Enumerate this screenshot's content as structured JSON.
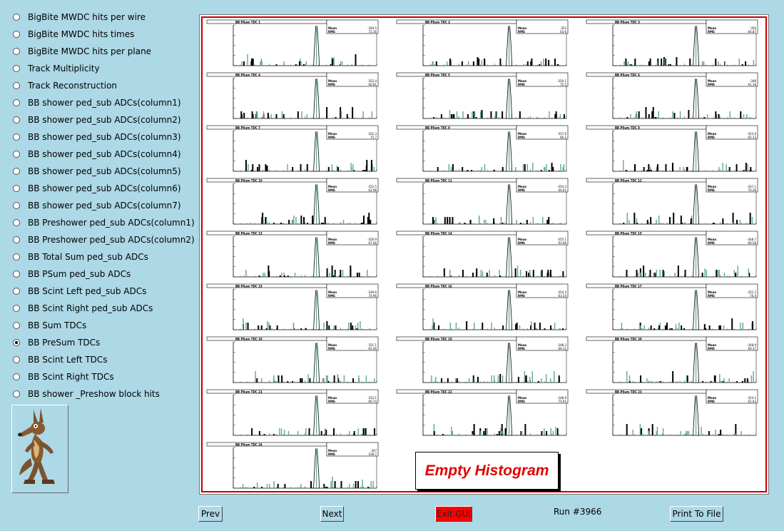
{
  "radio_options": [
    {
      "label": "BigBite MWDC hits per wire",
      "selected": false
    },
    {
      "label": "BigBite MWDC hits times",
      "selected": false
    },
    {
      "label": "BigBite MWDC hits per plane",
      "selected": false
    },
    {
      "label": "Track Multiplicity",
      "selected": false
    },
    {
      "label": "Track Reconstruction",
      "selected": false
    },
    {
      "label": "BB shower ped_sub ADCs(column1)",
      "selected": false
    },
    {
      "label": "BB shower ped_sub ADCs(column2)",
      "selected": false
    },
    {
      "label": "BB shower ped_sub ADCs(column3)",
      "selected": false
    },
    {
      "label": "BB shower ped_sub ADCs(column4)",
      "selected": false
    },
    {
      "label": "BB shower ped_sub ADCs(column5)",
      "selected": false
    },
    {
      "label": "BB shower ped_sub ADCs(column6)",
      "selected": false
    },
    {
      "label": "BB shower ped_sub ADCs(column7)",
      "selected": false
    },
    {
      "label": "BB Preshower ped_sub ADCs(column1)",
      "selected": false
    },
    {
      "label": "BB Preshower ped_sub ADCs(column2)",
      "selected": false
    },
    {
      "label": "BB Total Sum ped_sub ADCs",
      "selected": false
    },
    {
      "label": "BB PSum ped_sub ADCs",
      "selected": false
    },
    {
      "label": "BB Scint Left ped_sub ADCs",
      "selected": false
    },
    {
      "label": "BB Scint Right ped_sub ADCs",
      "selected": false
    },
    {
      "label": "BB Sum TDCs",
      "selected": false
    },
    {
      "label": "BB PreSum TDCs",
      "selected": true
    },
    {
      "label": "BB Scint Left TDCs",
      "selected": false
    },
    {
      "label": "BB Scint Right TDCs",
      "selected": false
    },
    {
      "label": "BB shower _Preshow block hits",
      "selected": false
    }
  ],
  "colors": {
    "background": "#add8e6",
    "canvas_border": "#c40000",
    "exit_button": "#ff0000",
    "empty_text": "#e00000",
    "hist_fill": "#5faa8a"
  },
  "histograms": [
    {
      "title": "BB PSum TDC 1",
      "mean": "-349.5",
      "rms": "72.36",
      "peak_x": 0.58
    },
    {
      "title": "BB PSum TDC 2",
      "mean": "-353",
      "rms": "63.6",
      "peak_x": 0.6
    },
    {
      "title": "BB PSum TDC 3",
      "mean": "-356",
      "rms": "64.87",
      "peak_x": 0.58
    },
    {
      "title": "BB PSum TDC 4",
      "mean": "-352.4",
      "rms": "60.81",
      "peak_x": 0.58
    },
    {
      "title": "BB PSum TDC 5",
      "mean": "-350.1",
      "rms": "72.5",
      "peak_x": 0.6
    },
    {
      "title": "BB PSum TDC 6",
      "mean": "-348",
      "rms": "61.18",
      "peak_x": 0.58
    },
    {
      "title": "BB PSum TDC 7",
      "mean": "-352.3",
      "rms": "75.7",
      "peak_x": 0.58
    },
    {
      "title": "BB PSum TDC 8",
      "mean": "-357.6",
      "rms": "66.2",
      "peak_x": 0.6
    },
    {
      "title": "BB PSum TDC 9",
      "mean": "-353.9",
      "rms": "65.33",
      "peak_x": 0.58
    },
    {
      "title": "BB PSum TDC 10",
      "mean": "-352.5",
      "rms": "62.98",
      "peak_x": 0.58
    },
    {
      "title": "BB PSum TDC 11",
      "mean": "-354.3",
      "rms": "64.61",
      "peak_x": 0.6
    },
    {
      "title": "BB PSum TDC 12",
      "mean": "-347.1",
      "rms": "70.28",
      "peak_x": 0.58
    },
    {
      "title": "BB PSum TDC 13",
      "mean": "-350.9",
      "rms": "67.46",
      "peak_x": 0.58
    },
    {
      "title": "BB PSum TDC 14",
      "mean": "-355.1",
      "rms": "63.96",
      "peak_x": 0.6
    },
    {
      "title": "BB PSum TDC 15",
      "mean": "-348.7",
      "rms": "69.58",
      "peak_x": 0.58
    },
    {
      "title": "BB PSum TDC 15",
      "mean": "-349.6",
      "rms": "74.96",
      "peak_x": 0.58
    },
    {
      "title": "BB PSum TDC 16",
      "mean": "-354.3",
      "rms": "63.54",
      "peak_x": 0.6
    },
    {
      "title": "BB PSum TDC 17",
      "mean": "-351.2",
      "rms": "70.4",
      "peak_x": 0.58
    },
    {
      "title": "BB PSum TDC 18",
      "mean": "-351.1",
      "rms": "65.46",
      "peak_x": 0.58
    },
    {
      "title": "BB PSum TDC 19",
      "mean": "-348.3",
      "rms": "69.11",
      "peak_x": 0.6
    },
    {
      "title": "BB PSum TDC 20",
      "mean": "-348.9",
      "rms": "69.37",
      "peak_x": 0.58
    },
    {
      "title": "BB PSum TDC 21",
      "mean": "-352.1",
      "rms": "60.74",
      "peak_x": 0.58
    },
    {
      "title": "BB PSum TDC 22",
      "mean": "-348.9",
      "rms": "75.65",
      "peak_x": 0.6
    },
    {
      "title": "BB PSum TDC 23",
      "mean": "-354.1",
      "rms": "61.63",
      "peak_x": 0.58
    },
    {
      "title": "BB PSum TDC 24",
      "mean": "-347",
      "rms": "109.7",
      "peak_x": 0.58
    }
  ],
  "empty_histogram_label": "Empty Histogram",
  "buttons": {
    "prev": "Prev",
    "next": "Next",
    "exit": "Exit GUI",
    "print": "Print To File"
  },
  "run_label": "Run #3966"
}
